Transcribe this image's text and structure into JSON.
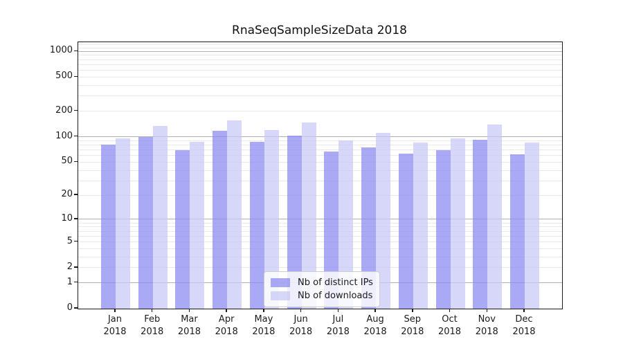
{
  "chart_data": {
    "type": "bar",
    "title": "RnaSeqSampleSizeData 2018",
    "categories": [
      "Jan 2018",
      "Feb 2018",
      "Mar 2018",
      "Apr 2018",
      "May 2018",
      "Jun 2018",
      "Jul 2018",
      "Aug 2018",
      "Sep 2018",
      "Oct 2018",
      "Nov 2018",
      "Dec 2018"
    ],
    "series": [
      {
        "name": "Nb of distinct IPs",
        "color": "rgba(136,136,242,0.72)",
        "values": [
          81,
          100,
          70,
          117,
          87,
          103,
          67,
          75,
          63,
          70,
          92,
          62
        ]
      },
      {
        "name": "Nb of downloads",
        "color": "rgba(199,199,247,0.72)",
        "values": [
          95,
          134,
          87,
          155,
          121,
          148,
          91,
          111,
          85,
          96,
          140,
          85
        ]
      }
    ],
    "xlabel": "",
    "ylabel": "",
    "yscale": "log10(1+x)",
    "ylim": [
      0,
      1278
    ],
    "yticks": [
      1000,
      500,
      200,
      100,
      50,
      20,
      10,
      5,
      2,
      1,
      0
    ],
    "major_gridlines": [
      1,
      10,
      100,
      1000
    ],
    "minor_gridlines": [
      2,
      3,
      4,
      5,
      6,
      7,
      8,
      9,
      20,
      30,
      40,
      50,
      60,
      70,
      80,
      90,
      200,
      300,
      400,
      500,
      600,
      700,
      800,
      900,
      1100,
      1200
    ],
    "grid": {
      "major_color": "#b0b0b0",
      "minor_color": "#e9e9e9"
    },
    "legend_position": "lower-center"
  }
}
